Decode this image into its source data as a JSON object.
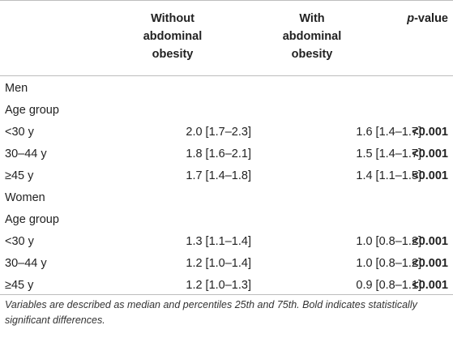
{
  "header": {
    "col2": [
      "Without",
      "abdominal",
      "obesity"
    ],
    "col3": [
      "With",
      "abdominal",
      "obesity"
    ],
    "col4_italic": "p",
    "col4_rest": "-value"
  },
  "rows": [
    {
      "label": "Men"
    },
    {
      "label": "Age group"
    },
    {
      "label": "<30 y",
      "without": "2.0 [1.7–2.3]",
      "with": "1.6 [1.4–1.7]",
      "p": "<0.001"
    },
    {
      "label": "30–44 y",
      "without": "1.8 [1.6–2.1]",
      "with": "1.5 [1.4–1.7]",
      "p": "<0.001"
    },
    {
      "label": "≥45 y",
      "without": "1.7 [1.4–1.8]",
      "with": "1.4 [1.1–1.5]",
      "p": "<0.001"
    },
    {
      "label": "Women"
    },
    {
      "label": "Age group"
    },
    {
      "label": "<30 y",
      "without": "1.3 [1.1–1.4]",
      "with": "1.0 [0.8–1.2]",
      "p": "<0.001"
    },
    {
      "label": "30–44 y",
      "without": "1.2 [1.0–1.4]",
      "with": "1.0 [0.8–1.2]",
      "p": "<0.001"
    },
    {
      "label": "≥45 y",
      "without": "1.2 [1.0–1.3]",
      "with": "0.9 [0.8–1.1]",
      "p": "<0.001"
    }
  ],
  "footnote": "Variables are described as median and percentiles 25th and 75th. Bold indicates statistically significant differences."
}
